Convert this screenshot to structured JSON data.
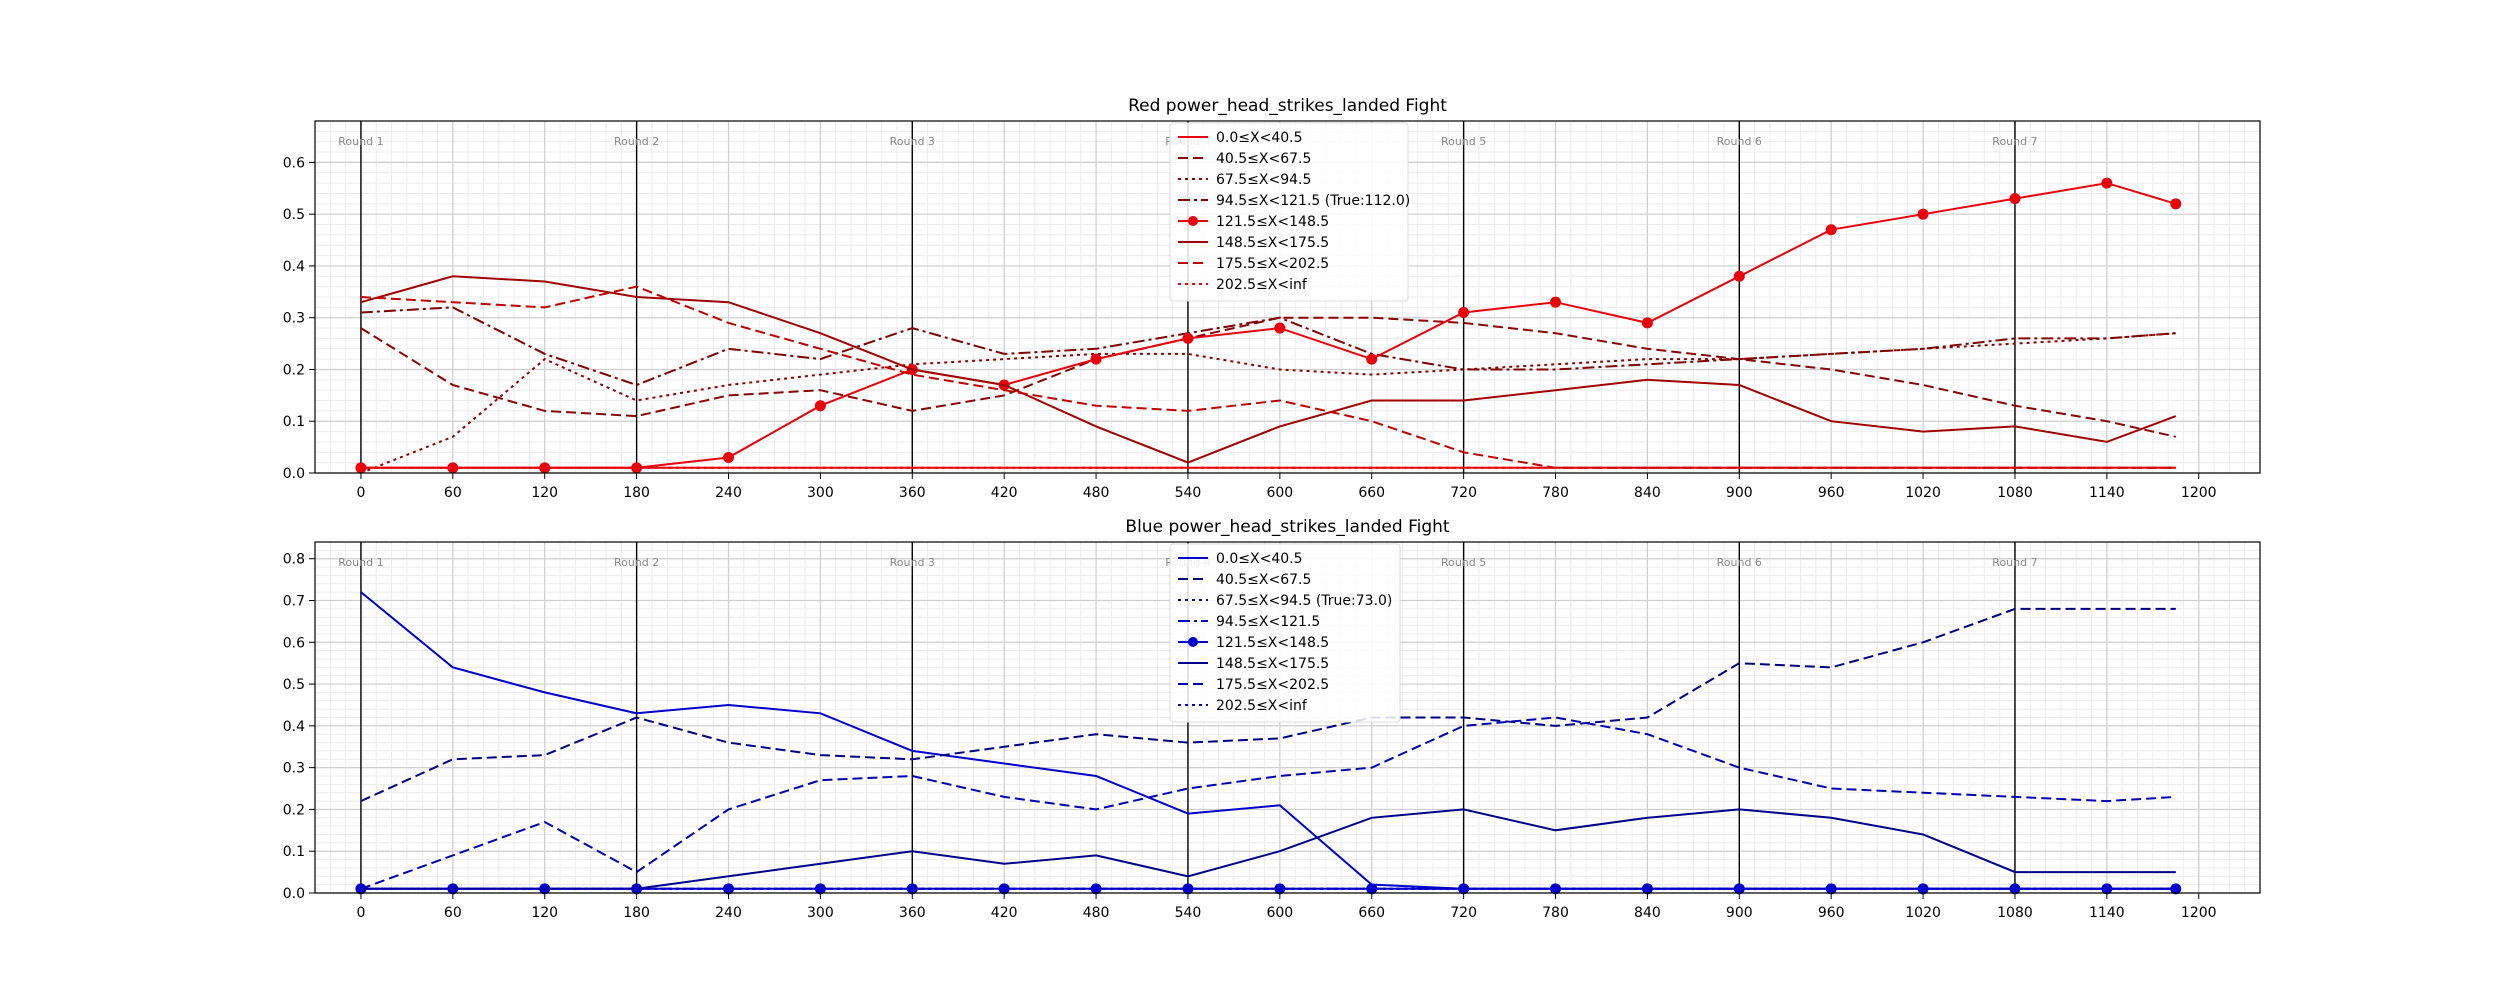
{
  "chart_data": [
    {
      "type": "line",
      "title": "Red power_head_strikes_landed Fight",
      "color": "#e8000b",
      "xlabel": "",
      "ylabel": "",
      "xlim": [
        -30,
        1240
      ],
      "ylim": [
        0,
        0.68
      ],
      "x_ticks": [
        0,
        60,
        120,
        180,
        240,
        300,
        360,
        420,
        480,
        540,
        600,
        660,
        720,
        780,
        840,
        900,
        960,
        1020,
        1080,
        1140,
        1200
      ],
      "y_ticks": [
        0.0,
        0.1,
        0.2,
        0.3,
        0.4,
        0.5,
        0.6
      ],
      "grid": true,
      "legend_position": "top-center",
      "rounds": [
        {
          "label": "Round 1",
          "x": 0
        },
        {
          "label": "Round 2",
          "x": 180
        },
        {
          "label": "Round 3",
          "x": 360
        },
        {
          "label": "Round 4",
          "x": 540
        },
        {
          "label": "Round 5",
          "x": 720
        },
        {
          "label": "Round 6",
          "x": 900
        },
        {
          "label": "Round 7",
          "x": 1080
        }
      ],
      "x": [
        0,
        60,
        120,
        180,
        240,
        300,
        360,
        420,
        480,
        540,
        600,
        660,
        720,
        780,
        840,
        900,
        960,
        1020,
        1080,
        1140,
        1185
      ],
      "series": [
        {
          "name": "0.0≤X<40.5",
          "color": "#e8000b",
          "style": "solid",
          "marker": false,
          "values": [
            0.01,
            0.01,
            0.01,
            0.01,
            0.01,
            0.01,
            0.01,
            0.01,
            0.01,
            0.01,
            0.01,
            0.01,
            0.01,
            0.01,
            0.01,
            0.01,
            0.01,
            0.01,
            0.01,
            0.01,
            0.01
          ]
        },
        {
          "name": "40.5≤X<67.5",
          "color": "#8b0000",
          "style": "dashed",
          "marker": false,
          "values": [
            0.28,
            0.17,
            0.12,
            0.11,
            0.15,
            0.16,
            0.12,
            0.15,
            0.22,
            0.26,
            0.3,
            0.3,
            0.29,
            0.27,
            0.24,
            0.22,
            0.2,
            0.17,
            0.13,
            0.1,
            0.07
          ]
        },
        {
          "name": "67.5≤X<94.5",
          "color": "#8b0000",
          "style": "dotted",
          "marker": false,
          "values": [
            0.0,
            0.07,
            0.22,
            0.14,
            0.17,
            0.19,
            0.21,
            0.22,
            0.23,
            0.23,
            0.2,
            0.19,
            0.2,
            0.21,
            0.22,
            0.22,
            0.23,
            0.24,
            0.25,
            0.26,
            0.27
          ]
        },
        {
          "name": "94.5≤X<121.5 (True:112.0)",
          "color": "#800000",
          "style": "dashdot",
          "marker": false,
          "values": [
            0.31,
            0.32,
            0.23,
            0.17,
            0.24,
            0.22,
            0.28,
            0.23,
            0.24,
            0.27,
            0.3,
            0.23,
            0.2,
            0.2,
            0.21,
            0.22,
            0.23,
            0.24,
            0.26,
            0.26,
            0.27
          ]
        },
        {
          "name": "121.5≤X<148.5",
          "color": "#e8000b",
          "style": "solid",
          "marker": true,
          "values": [
            0.01,
            0.01,
            0.01,
            0.01,
            0.03,
            0.13,
            0.2,
            0.17,
            0.22,
            0.26,
            0.28,
            0.22,
            0.31,
            0.33,
            0.29,
            0.38,
            0.47,
            0.5,
            0.53,
            0.56,
            0.52
          ]
        },
        {
          "name": "148.5≤X<175.5",
          "color": "#a00000",
          "style": "solid",
          "marker": false,
          "values": [
            0.33,
            0.38,
            0.37,
            0.34,
            0.33,
            0.27,
            0.2,
            0.17,
            0.09,
            0.02,
            0.09,
            0.14,
            0.14,
            0.16,
            0.18,
            0.17,
            0.1,
            0.08,
            0.09,
            0.06,
            0.11
          ]
        },
        {
          "name": "175.5≤X<202.5",
          "color": "#c00000",
          "style": "dashed",
          "marker": false,
          "values": [
            0.34,
            0.33,
            0.32,
            0.36,
            0.29,
            0.24,
            0.19,
            0.16,
            0.13,
            0.12,
            0.14,
            0.1,
            0.04,
            0.01,
            0.01,
            0.01,
            0.01,
            0.01,
            0.01,
            0.01,
            0.01
          ]
        },
        {
          "name": "202.5≤X<inf",
          "color": "#e8000b",
          "style": "dotted",
          "marker": false,
          "values": [
            0.01,
            0.01,
            0.01,
            0.01,
            0.01,
            0.01,
            0.01,
            0.01,
            0.01,
            0.01,
            0.01,
            0.01,
            0.01,
            0.01,
            0.01,
            0.01,
            0.01,
            0.01,
            0.01,
            0.01,
            0.01
          ]
        }
      ]
    },
    {
      "type": "line",
      "title": "Blue power_head_strikes_landed Fight",
      "color": "#0000cd",
      "xlabel": "",
      "ylabel": "",
      "xlim": [
        -30,
        1240
      ],
      "ylim": [
        0,
        0.84
      ],
      "x_ticks": [
        0,
        60,
        120,
        180,
        240,
        300,
        360,
        420,
        480,
        540,
        600,
        660,
        720,
        780,
        840,
        900,
        960,
        1020,
        1080,
        1140,
        1200
      ],
      "y_ticks": [
        0.0,
        0.1,
        0.2,
        0.3,
        0.4,
        0.5,
        0.6,
        0.7,
        0.8
      ],
      "grid": true,
      "legend_position": "top-center",
      "rounds": [
        {
          "label": "Round 1",
          "x": 0
        },
        {
          "label": "Round 2",
          "x": 180
        },
        {
          "label": "Round 3",
          "x": 360
        },
        {
          "label": "Round 4",
          "x": 540
        },
        {
          "label": "Round 5",
          "x": 720
        },
        {
          "label": "Round 6",
          "x": 900
        },
        {
          "label": "Round 7",
          "x": 1080
        }
      ],
      "x": [
        0,
        60,
        120,
        180,
        240,
        300,
        360,
        420,
        480,
        540,
        600,
        660,
        720,
        780,
        840,
        900,
        960,
        1020,
        1080,
        1140,
        1185
      ],
      "series": [
        {
          "name": "0.0≤X<40.5",
          "color": "#0000cd",
          "style": "solid",
          "marker": false,
          "values": [
            0.72,
            0.54,
            0.48,
            0.43,
            0.45,
            0.43,
            0.34,
            0.31,
            0.28,
            0.19,
            0.21,
            0.02,
            0.01,
            0.01,
            0.01,
            0.01,
            0.01,
            0.01,
            0.01,
            0.01,
            0.01
          ]
        },
        {
          "name": "40.5≤X<67.5",
          "color": "#000080",
          "style": "dashed",
          "marker": false,
          "values": [
            0.22,
            0.32,
            0.33,
            0.42,
            0.36,
            0.33,
            0.32,
            0.35,
            0.38,
            0.36,
            0.37,
            0.42,
            0.42,
            0.4,
            0.42,
            0.55,
            0.54,
            0.6,
            0.68,
            0.68,
            0.68
          ]
        },
        {
          "name": "67.5≤X<94.5 (True:73.0)",
          "color": "#000080",
          "style": "dotted",
          "marker": false,
          "values": [
            0.01,
            0.01,
            0.01,
            0.01,
            0.01,
            0.01,
            0.01,
            0.01,
            0.01,
            0.01,
            0.01,
            0.01,
            0.01,
            0.01,
            0.01,
            0.01,
            0.01,
            0.01,
            0.01,
            0.01,
            0.01
          ]
        },
        {
          "name": "94.5≤X<121.5",
          "color": "#0000cd",
          "style": "dashdot",
          "marker": false,
          "values": [
            0.01,
            0.01,
            0.01,
            0.01,
            0.01,
            0.01,
            0.01,
            0.01,
            0.01,
            0.01,
            0.01,
            0.01,
            0.01,
            0.01,
            0.01,
            0.01,
            0.01,
            0.01,
            0.01,
            0.01,
            0.01
          ]
        },
        {
          "name": "121.5≤X<148.5",
          "color": "#0000cd",
          "style": "solid",
          "marker": true,
          "values": [
            0.01,
            0.01,
            0.01,
            0.01,
            0.01,
            0.01,
            0.01,
            0.01,
            0.01,
            0.01,
            0.01,
            0.01,
            0.01,
            0.01,
            0.01,
            0.01,
            0.01,
            0.01,
            0.01,
            0.01,
            0.01
          ]
        },
        {
          "name": "148.5≤X<175.5",
          "color": "#00008b",
          "style": "solid",
          "marker": false,
          "values": [
            0.01,
            0.01,
            0.01,
            0.01,
            0.04,
            0.07,
            0.1,
            0.07,
            0.09,
            0.04,
            0.1,
            0.18,
            0.2,
            0.15,
            0.18,
            0.2,
            0.18,
            0.14,
            0.05,
            0.05,
            0.05
          ]
        },
        {
          "name": "175.5≤X<202.5",
          "color": "#0000b0",
          "style": "dashed",
          "marker": false,
          "values": [
            0.01,
            0.09,
            0.17,
            0.05,
            0.2,
            0.27,
            0.28,
            0.23,
            0.2,
            0.25,
            0.28,
            0.3,
            0.4,
            0.42,
            0.38,
            0.3,
            0.25,
            0.24,
            0.23,
            0.22,
            0.23
          ]
        },
        {
          "name": "202.5≤X<inf",
          "color": "#0000cd",
          "style": "dotted",
          "marker": false,
          "values": [
            0.01,
            0.01,
            0.01,
            0.01,
            0.01,
            0.01,
            0.01,
            0.01,
            0.01,
            0.01,
            0.01,
            0.01,
            0.01,
            0.01,
            0.01,
            0.01,
            0.01,
            0.01,
            0.01,
            0.01,
            0.01
          ]
        }
      ]
    }
  ]
}
